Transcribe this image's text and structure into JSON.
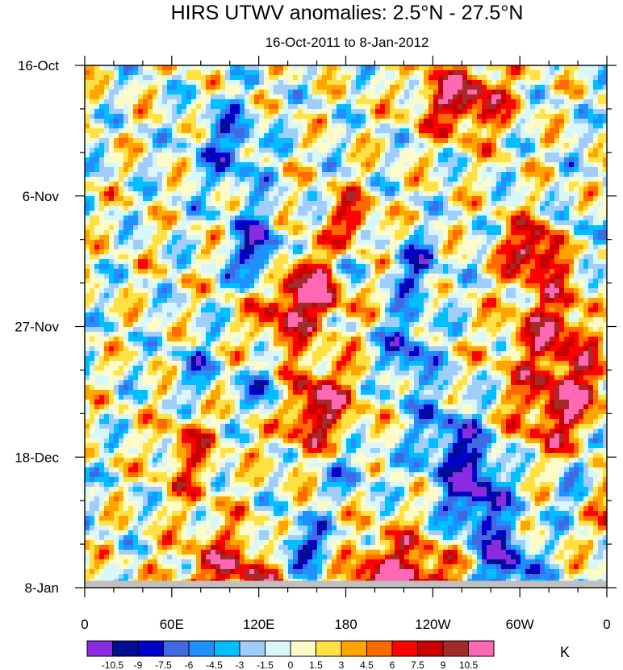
{
  "chart_data": {
    "type": "heatmap",
    "title": "HIRS UTWV anomalies: 2.5°N - 27.5°N",
    "subtitle": "16-Oct-2011 to 8-Jan-2012",
    "x_tick_labels": [
      "0",
      "60E",
      "120E",
      "180",
      "120W",
      "60W",
      "0"
    ],
    "y_tick_labels": [
      "16-Oct",
      "6-Nov",
      "27-Nov",
      "18-Dec",
      "8-Jan"
    ],
    "xlim": [
      0,
      360
    ],
    "y_days_range": [
      0,
      84
    ],
    "colorbar_unit": "K",
    "colorbar_levels": [
      "-10.5",
      "-9",
      "-7.5",
      "-6",
      "-4.5",
      "-3",
      "-1.5",
      "0",
      "1.5",
      "3",
      "4.5",
      "6",
      "7.5",
      "9",
      "10.5"
    ],
    "colorbar_colors": [
      "#8a2be2",
      "#000f8f",
      "#0000cd",
      "#4169e1",
      "#1e90ff",
      "#00bfff",
      "#a0cdf9",
      "#d8f7fb",
      "#fffbc8",
      "#ffe144",
      "#ffa500",
      "#ff6a00",
      "#ff0000",
      "#c80000",
      "#a52a2a",
      "#ff69b4"
    ],
    "missing_color": "#c0c0c0",
    "missing_days": 2
  }
}
